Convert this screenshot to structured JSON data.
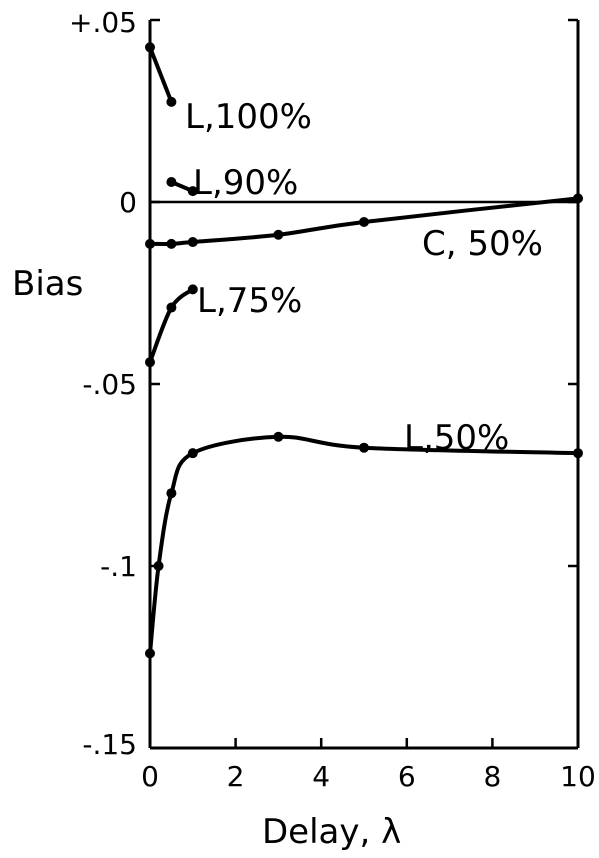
{
  "chart_data": {
    "type": "line",
    "xlabel": "Delay, λ",
    "ylabel": "Bias",
    "xlim": [
      0,
      10
    ],
    "ylim": [
      -0.15,
      0.05
    ],
    "xticks": [
      0,
      2,
      4,
      6,
      8,
      10
    ],
    "xtick_labels": [
      "0",
      "2",
      "4",
      "6",
      "8",
      "10"
    ],
    "yticks": [
      0.05,
      0,
      -0.05,
      -0.1,
      -0.15
    ],
    "ytick_labels": [
      "+.05",
      "0",
      "-.05",
      "-.1",
      "-.15"
    ],
    "grid": false,
    "zero_line": true,
    "series": [
      {
        "name": "L,100%",
        "x": [
          0,
          0.5
        ],
        "y": [
          0.0425,
          0.0275
        ]
      },
      {
        "name": "L,90%",
        "x": [
          0.5,
          1
        ],
        "y": [
          0.0055,
          0.003
        ]
      },
      {
        "name": "C, 50%",
        "x": [
          0,
          0.5,
          1,
          3,
          5,
          10
        ],
        "y": [
          -0.0115,
          -0.0115,
          -0.011,
          -0.009,
          -0.0055,
          0.001
        ]
      },
      {
        "name": "L,75%",
        "x": [
          0,
          0.5,
          1
        ],
        "y": [
          -0.044,
          -0.029,
          -0.024
        ]
      },
      {
        "name": "L,50%",
        "x": [
          0,
          0.2,
          0.5,
          1,
          3,
          5,
          10
        ],
        "y": [
          -0.124,
          -0.1,
          -0.08,
          -0.069,
          -0.0645,
          -0.0675,
          -0.069
        ]
      }
    ]
  }
}
